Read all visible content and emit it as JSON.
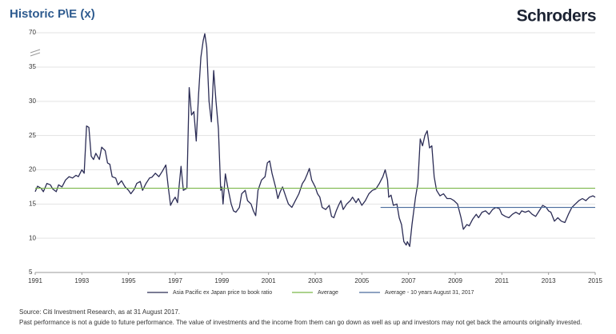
{
  "chart_data": {
    "type": "line",
    "title": "Historic P\\E (x)",
    "brand": "Schroders",
    "xlim": [
      1991,
      2015
    ],
    "xticks": [
      1991,
      1993,
      1995,
      1997,
      1999,
      2001,
      2003,
      2005,
      2007,
      2009,
      2011,
      2013,
      2015
    ],
    "ylim": [
      5,
      70
    ],
    "yticks": [
      5,
      10,
      15,
      20,
      25,
      30,
      35,
      70
    ],
    "axis_break": 35,
    "grid": true,
    "series": [
      {
        "name": "Asia Pacific ex Japan price to book ratio",
        "color": "#2b2c55",
        "x": [
          1991.0,
          1991.1,
          1991.25,
          1991.35,
          1991.5,
          1991.65,
          1991.75,
          1991.9,
          1992.0,
          1992.15,
          1992.3,
          1992.45,
          1992.6,
          1992.75,
          1992.85,
          1993.0,
          1993.1,
          1993.2,
          1993.3,
          1993.4,
          1993.5,
          1993.6,
          1993.75,
          1993.85,
          1994.0,
          1994.1,
          1994.2,
          1994.3,
          1994.45,
          1994.55,
          1994.7,
          1994.85,
          1995.0,
          1995.1,
          1995.25,
          1995.35,
          1995.5,
          1995.6,
          1995.75,
          1995.9,
          1996.0,
          1996.15,
          1996.3,
          1996.45,
          1996.6,
          1996.7,
          1996.8,
          1996.9,
          1997.0,
          1997.1,
          1997.25,
          1997.35,
          1997.5,
          1997.6,
          1997.7,
          1997.8,
          1997.9,
          1998.0,
          1998.1,
          1998.2,
          1998.27,
          1998.35,
          1998.45,
          1998.55,
          1998.65,
          1998.75,
          1998.85,
          1998.95,
          1999.0,
          1999.05,
          1999.15,
          1999.25,
          1999.4,
          1999.5,
          1999.6,
          1999.75,
          1999.85,
          2000.0,
          2000.1,
          2000.25,
          2000.35,
          2000.45,
          2000.55,
          2000.7,
          2000.85,
          2000.95,
          2001.05,
          2001.15,
          2001.3,
          2001.4,
          2001.5,
          2001.6,
          2001.75,
          2001.85,
          2002.0,
          2002.15,
          2002.3,
          2002.45,
          2002.55,
          2002.65,
          2002.75,
          2002.85,
          2003.0,
          2003.1,
          2003.2,
          2003.3,
          2003.45,
          2003.6,
          2003.7,
          2003.8,
          2003.9,
          2004.0,
          2004.1,
          2004.2,
          2004.35,
          2004.5,
          2004.6,
          2004.75,
          2004.85,
          2005.0,
          2005.15,
          2005.3,
          2005.45,
          2005.6,
          2005.75,
          2005.9,
          2006.0,
          2006.1,
          2006.15,
          2006.25,
          2006.35,
          2006.5,
          2006.6,
          2006.7,
          2006.8,
          2006.9,
          2006.95,
          2007.05,
          2007.15,
          2007.3,
          2007.4,
          2007.5,
          2007.6,
          2007.7,
          2007.8,
          2007.9,
          2008.0,
          2008.1,
          2008.2,
          2008.35,
          2008.5,
          2008.65,
          2008.8,
          2008.95,
          2009.1,
          2009.25,
          2009.35,
          2009.5,
          2009.6,
          2009.75,
          2009.9,
          2010.0,
          2010.15,
          2010.3,
          2010.45,
          2010.6,
          2010.75,
          2010.9,
          2011.0,
          2011.15,
          2011.3,
          2011.45,
          2011.6,
          2011.75,
          2011.85,
          2012.0,
          2012.15,
          2012.3,
          2012.45,
          2012.6,
          2012.75,
          2012.9,
          2013.0,
          2013.1,
          2013.25,
          2013.4,
          2013.55,
          2013.7,
          2013.85,
          2014.0,
          2014.15,
          2014.3,
          2014.45,
          2014.6,
          2014.75,
          2014.9,
          2015.0
        ],
        "values": [
          16.8,
          17.6,
          17.3,
          16.8,
          18.0,
          17.8,
          17.2,
          16.8,
          17.8,
          17.5,
          18.5,
          19.0,
          18.8,
          19.2,
          19.0,
          20.0,
          19.5,
          26.4,
          26.2,
          22.0,
          21.5,
          22.4,
          21.5,
          23.3,
          22.8,
          21.0,
          20.8,
          19.0,
          18.8,
          17.8,
          18.4,
          17.5,
          17.0,
          16.5,
          17.2,
          18.0,
          18.3,
          17.0,
          18.0,
          18.8,
          18.9,
          19.5,
          19.0,
          19.8,
          20.7,
          17.5,
          14.8,
          15.5,
          16.0,
          15.2,
          20.5,
          17.0,
          17.3,
          32.0,
          28.0,
          28.5,
          24.2,
          31.0,
          45,
          62,
          69,
          55,
          30,
          27.0,
          34.5,
          30.0,
          26.0,
          17.0,
          17.5,
          15.0,
          19.4,
          17.5,
          15.0,
          14.0,
          13.8,
          14.5,
          16.5,
          17.0,
          15.5,
          15.0,
          14.0,
          13.3,
          17.0,
          18.5,
          19.0,
          21.0,
          21.3,
          19.5,
          17.5,
          15.8,
          16.8,
          17.5,
          16.0,
          15.0,
          14.5,
          15.5,
          16.5,
          18.0,
          18.5,
          19.3,
          20.2,
          18.5,
          17.5,
          16.5,
          16.0,
          14.5,
          14.2,
          14.8,
          13.2,
          13.0,
          14.0,
          14.8,
          15.5,
          14.2,
          15.0,
          15.5,
          16.0,
          15.2,
          15.8,
          14.8,
          15.5,
          16.5,
          17.0,
          17.2,
          18.0,
          19.0,
          20.0,
          18.5,
          16.0,
          16.3,
          14.8,
          15.0,
          13.0,
          12.0,
          9.5,
          9.0,
          9.5,
          8.8,
          12.0,
          16.0,
          18.0,
          24.5,
          23.5,
          25.0,
          25.7,
          23.2,
          23.5,
          19.0,
          17.0,
          16.2,
          16.5,
          15.8,
          15.8,
          15.5,
          15.0,
          13.0,
          11.3,
          12.0,
          11.8,
          12.8,
          13.5,
          13.0,
          13.8,
          14.0,
          13.5,
          14.2,
          14.5,
          14.3,
          13.5,
          13.2,
          13.0,
          13.5,
          13.8,
          13.5,
          14.0,
          13.8,
          14.0,
          13.5,
          13.2,
          14.0,
          14.8,
          14.5,
          14.0,
          13.8,
          12.5,
          13.0,
          12.5,
          12.3,
          13.5,
          14.5,
          15.0,
          15.5,
          15.8,
          15.5,
          16.0,
          16.2,
          16.0
        ]
      },
      {
        "name": "Average",
        "color": "#7ab648",
        "x": [
          1991,
          2015
        ],
        "values": [
          17.3,
          17.3
        ]
      },
      {
        "name": "Average - 10 years August 31, 2017",
        "color": "#4a6b9c",
        "x": [
          2005.8,
          2015
        ],
        "values": [
          14.5,
          14.5
        ]
      }
    ],
    "footnotes": [
      "Source: Citi Investment Research, as at 31 August 2017.",
      "Past performance is not a guide to future performance. The value of investments and the income from them can go down as well as up and investors may not get back the amounts originally invested."
    ]
  }
}
